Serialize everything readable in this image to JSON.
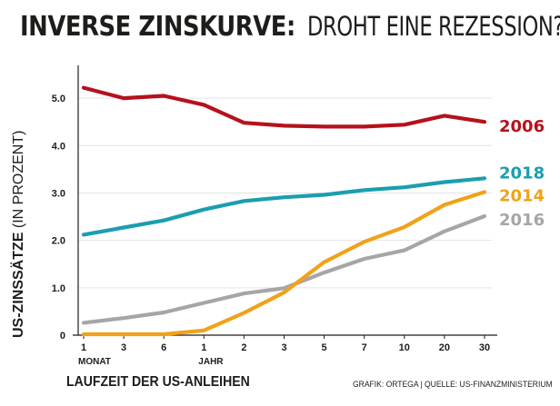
{
  "title": {
    "bold": "INVERSE ZINSKURVE:",
    "light": "DROHT EINE REZESSION?"
  },
  "source": "GRAFIK: ORTEGA | QUELLE: US-FINANZMINISTERIUM",
  "colors": {
    "2006": "#b5121b",
    "2018": "#1a9eb0",
    "2014": "#f0a21a",
    "2016": "#a6a6a6",
    "axis": "#1d1d1b",
    "grid": "#e3e3e3"
  },
  "chart_data": {
    "type": "line",
    "title": "INVERSE ZINSKURVE: DROHT EINE REZESSION?",
    "xlabel": "LAUFZEIT DER US-ANLEIHEN",
    "ylabel_bold": "US-ZINSSÄTZE",
    "ylabel_light": "(IN PROZENT)",
    "categories": [
      "1",
      "3",
      "6",
      "1",
      "2",
      "3",
      "5",
      "7",
      "10",
      "20",
      "30"
    ],
    "category_sublabels": [
      "MONAT",
      "",
      "",
      "JAHR",
      "",
      "",
      "",
      "",
      "",
      "",
      ""
    ],
    "yticks": [
      "0",
      "1.0",
      "2.0",
      "3.0",
      "4.0",
      "5.0"
    ],
    "ylim": [
      0,
      5.5
    ],
    "grid": true,
    "legend": "right, at line ends",
    "series": [
      {
        "name": "2006",
        "values": [
          5.22,
          5.0,
          5.05,
          4.86,
          4.48,
          4.42,
          4.4,
          4.4,
          4.44,
          4.63,
          4.5
        ]
      },
      {
        "name": "2018",
        "values": [
          2.12,
          2.27,
          2.42,
          2.65,
          2.83,
          2.91,
          2.96,
          3.06,
          3.12,
          3.23,
          3.31
        ]
      },
      {
        "name": "2014",
        "values": [
          0.02,
          0.02,
          0.02,
          0.1,
          0.47,
          0.9,
          1.54,
          1.97,
          2.28,
          2.75,
          3.02
        ]
      },
      {
        "name": "2016",
        "values": [
          0.26,
          0.36,
          0.48,
          0.68,
          0.88,
          0.99,
          1.32,
          1.61,
          1.79,
          2.19,
          2.51
        ]
      }
    ]
  }
}
